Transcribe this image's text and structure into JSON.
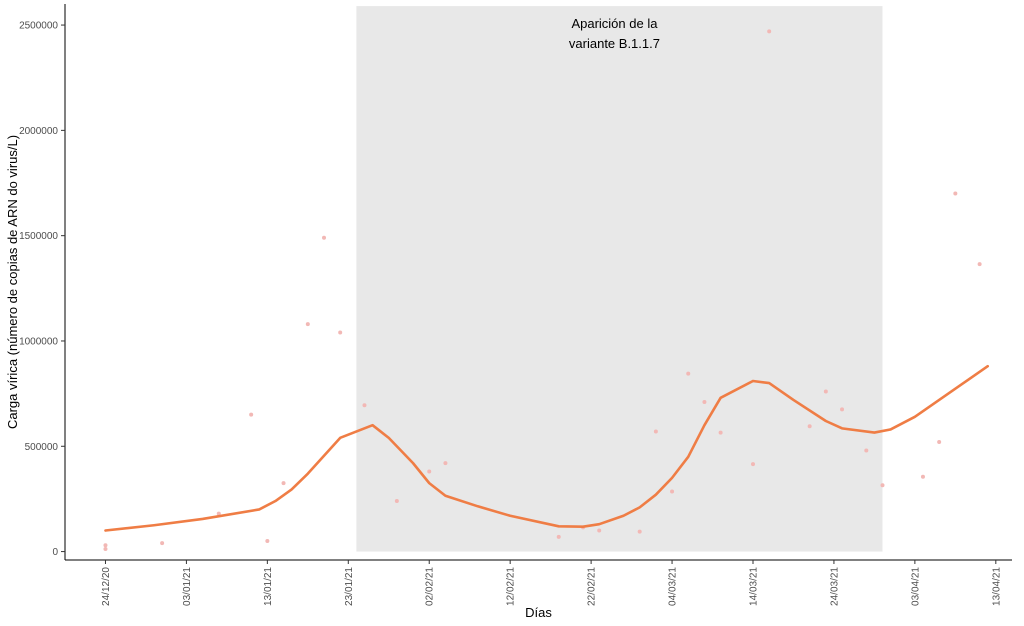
{
  "chart_data": {
    "type": "line",
    "xlabel": "Días",
    "ylabel": "Carga vírica (número de copias de ARN do virus/L)",
    "x_axis": {
      "type": "date",
      "range": [
        "2020-12-19",
        "2021-04-15"
      ],
      "ticks": [
        {
          "date": "2020-12-24",
          "label": "24/12/20"
        },
        {
          "date": "2021-01-03",
          "label": "03/01/21"
        },
        {
          "date": "2021-01-13",
          "label": "13/01/21"
        },
        {
          "date": "2021-01-23",
          "label": "23/01/21"
        },
        {
          "date": "2021-02-02",
          "label": "02/02/21"
        },
        {
          "date": "2021-02-12",
          "label": "12/02/21"
        },
        {
          "date": "2021-02-22",
          "label": "22/02/21"
        },
        {
          "date": "2021-03-04",
          "label": "04/03/21"
        },
        {
          "date": "2021-03-14",
          "label": "14/03/21"
        },
        {
          "date": "2021-03-24",
          "label": "24/03/21"
        },
        {
          "date": "2021-04-03",
          "label": "03/04/21"
        },
        {
          "date": "2021-04-13",
          "label": "13/04/21"
        }
      ]
    },
    "y_axis": {
      "range": [
        -40000,
        2600000
      ],
      "ticks": [
        {
          "value": 0,
          "label": "0"
        },
        {
          "value": 500000,
          "label": "500000"
        },
        {
          "value": 1000000,
          "label": "1000000"
        },
        {
          "value": 1500000,
          "label": "1500000"
        },
        {
          "value": 2000000,
          "label": "2000000"
        },
        {
          "value": 2500000,
          "label": "2500000"
        }
      ]
    },
    "grid": false,
    "highlight_region": {
      "x_start": "2021-01-24",
      "x_end": "2021-03-30",
      "y_start": 0,
      "y_end": 2590000,
      "color": "#e8e8e8",
      "annotation": [
        "Aparición de la",
        "variante B.1.1.7"
      ]
    },
    "points_color": "#f2b8b5",
    "line_color": "#ef7d45",
    "points": [
      {
        "x": "2020-12-24",
        "y": 30000
      },
      {
        "x": "2020-12-24",
        "y": 12000
      },
      {
        "x": "2020-12-31",
        "y": 40000
      },
      {
        "x": "2021-01-07",
        "y": 180000
      },
      {
        "x": "2021-01-11",
        "y": 650000
      },
      {
        "x": "2021-01-13",
        "y": 50000
      },
      {
        "x": "2021-01-15",
        "y": 325000
      },
      {
        "x": "2021-01-18",
        "y": 1080000
      },
      {
        "x": "2021-01-20",
        "y": 1490000
      },
      {
        "x": "2021-01-22",
        "y": 1040000
      },
      {
        "x": "2021-01-25",
        "y": 695000
      },
      {
        "x": "2021-01-29",
        "y": 240000
      },
      {
        "x": "2021-02-02",
        "y": 380000
      },
      {
        "x": "2021-02-04",
        "y": 420000
      },
      {
        "x": "2021-02-18",
        "y": 70000
      },
      {
        "x": "2021-02-21",
        "y": 115000
      },
      {
        "x": "2021-02-23",
        "y": 100000
      },
      {
        "x": "2021-02-28",
        "y": 95000
      },
      {
        "x": "2021-03-02",
        "y": 570000
      },
      {
        "x": "2021-03-04",
        "y": 285000
      },
      {
        "x": "2021-03-06",
        "y": 845000
      },
      {
        "x": "2021-03-08",
        "y": 710000
      },
      {
        "x": "2021-03-10",
        "y": 565000
      },
      {
        "x": "2021-03-14",
        "y": 415000
      },
      {
        "x": "2021-03-16",
        "y": 2470000
      },
      {
        "x": "2021-03-21",
        "y": 595000
      },
      {
        "x": "2021-03-23",
        "y": 760000
      },
      {
        "x": "2021-03-25",
        "y": 675000
      },
      {
        "x": "2021-03-28",
        "y": 480000
      },
      {
        "x": "2021-03-30",
        "y": 315000
      },
      {
        "x": "2021-04-04",
        "y": 355000
      },
      {
        "x": "2021-04-06",
        "y": 520000
      },
      {
        "x": "2021-04-08",
        "y": 1700000
      },
      {
        "x": "2021-04-11",
        "y": 1365000
      }
    ],
    "line": [
      {
        "x": "2020-12-24",
        "y": 100000
      },
      {
        "x": "2020-12-30",
        "y": 125000
      },
      {
        "x": "2021-01-05",
        "y": 155000
      },
      {
        "x": "2021-01-12",
        "y": 200000
      },
      {
        "x": "2021-01-14",
        "y": 240000
      },
      {
        "x": "2021-01-16",
        "y": 295000
      },
      {
        "x": "2021-01-18",
        "y": 370000
      },
      {
        "x": "2021-01-20",
        "y": 455000
      },
      {
        "x": "2021-01-22",
        "y": 540000
      },
      {
        "x": "2021-01-26",
        "y": 600000
      },
      {
        "x": "2021-01-28",
        "y": 540000
      },
      {
        "x": "2021-01-31",
        "y": 420000
      },
      {
        "x": "2021-02-02",
        "y": 325000
      },
      {
        "x": "2021-02-04",
        "y": 265000
      },
      {
        "x": "2021-02-08",
        "y": 215000
      },
      {
        "x": "2021-02-12",
        "y": 170000
      },
      {
        "x": "2021-02-18",
        "y": 120000
      },
      {
        "x": "2021-02-21",
        "y": 118000
      },
      {
        "x": "2021-02-23",
        "y": 130000
      },
      {
        "x": "2021-02-26",
        "y": 170000
      },
      {
        "x": "2021-02-28",
        "y": 210000
      },
      {
        "x": "2021-03-02",
        "y": 270000
      },
      {
        "x": "2021-03-04",
        "y": 350000
      },
      {
        "x": "2021-03-06",
        "y": 450000
      },
      {
        "x": "2021-03-08",
        "y": 600000
      },
      {
        "x": "2021-03-10",
        "y": 730000
      },
      {
        "x": "2021-03-14",
        "y": 810000
      },
      {
        "x": "2021-03-16",
        "y": 800000
      },
      {
        "x": "2021-03-19",
        "y": 720000
      },
      {
        "x": "2021-03-23",
        "y": 620000
      },
      {
        "x": "2021-03-25",
        "y": 585000
      },
      {
        "x": "2021-03-29",
        "y": 565000
      },
      {
        "x": "2021-03-31",
        "y": 580000
      },
      {
        "x": "2021-04-03",
        "y": 640000
      },
      {
        "x": "2021-04-06",
        "y": 720000
      },
      {
        "x": "2021-04-09",
        "y": 800000
      },
      {
        "x": "2021-04-12",
        "y": 880000
      }
    ]
  }
}
